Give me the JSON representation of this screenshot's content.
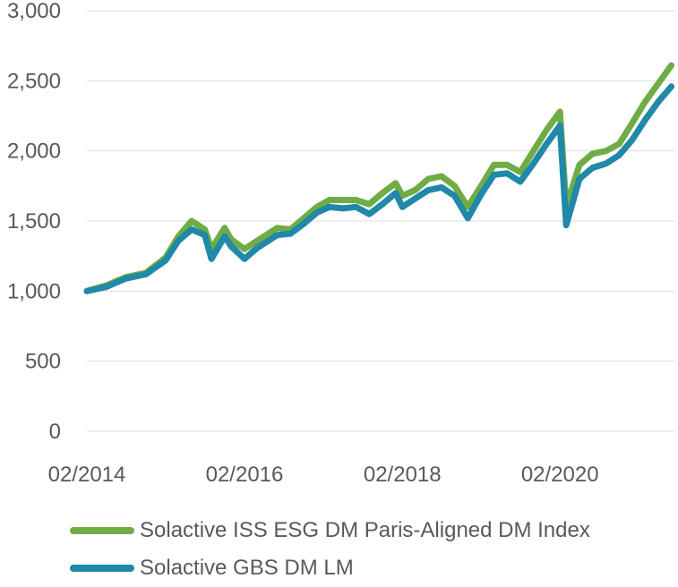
{
  "chart_data": {
    "type": "line",
    "title": "",
    "xlabel": "",
    "ylabel": "",
    "ylim": [
      0,
      3000
    ],
    "yticks": [
      "0",
      "500",
      "1,000",
      "1,500",
      "2,000",
      "2,500",
      "3,000"
    ],
    "xticks": [
      "02/2014",
      "02/2016",
      "02/2018",
      "02/2020"
    ],
    "grid": "horizontal",
    "legend_position": "bottom",
    "x_dates": [
      "2014-02",
      "2014-05",
      "2014-08",
      "2014-11",
      "2015-02",
      "2015-04",
      "2015-06",
      "2015-08",
      "2015-09",
      "2015-11",
      "2015-12",
      "2016-02",
      "2016-04",
      "2016-06",
      "2016-07",
      "2016-09",
      "2016-11",
      "2017-01",
      "2017-03",
      "2017-05",
      "2017-07",
      "2017-09",
      "2017-11",
      "2018-01",
      "2018-02",
      "2018-04",
      "2018-06",
      "2018-08",
      "2018-10",
      "2018-12",
      "2019-02",
      "2019-04",
      "2019-06",
      "2019-08",
      "2019-10",
      "2019-12",
      "2020-02",
      "2020-03",
      "2020-05",
      "2020-07",
      "2020-09",
      "2020-11",
      "2021-01",
      "2021-03",
      "2021-05",
      "2021-07"
    ],
    "series": [
      {
        "name": "Solactive ISS ESG DM Paris-Aligned DM Index",
        "color": "#6fac46",
        "values": [
          1000,
          1040,
          1100,
          1130,
          1240,
          1390,
          1500,
          1440,
          1300,
          1450,
          1370,
          1300,
          1360,
          1420,
          1450,
          1440,
          1520,
          1600,
          1650,
          1650,
          1650,
          1620,
          1700,
          1770,
          1680,
          1720,
          1800,
          1820,
          1750,
          1600,
          1750,
          1900,
          1900,
          1850,
          2000,
          2150,
          2280,
          1600,
          1900,
          1980,
          2000,
          2050,
          2200,
          2350,
          2480,
          2610
        ]
      },
      {
        "name": "Solactive GBS DM LM",
        "color": "#2088a8",
        "values": [
          1000,
          1030,
          1090,
          1120,
          1220,
          1360,
          1440,
          1400,
          1230,
          1390,
          1320,
          1230,
          1310,
          1370,
          1400,
          1410,
          1480,
          1560,
          1600,
          1590,
          1600,
          1550,
          1620,
          1700,
          1600,
          1660,
          1720,
          1740,
          1680,
          1520,
          1690,
          1830,
          1840,
          1780,
          1910,
          2050,
          2180,
          1470,
          1800,
          1880,
          1910,
          1970,
          2080,
          2220,
          2350,
          2460
        ]
      }
    ]
  }
}
